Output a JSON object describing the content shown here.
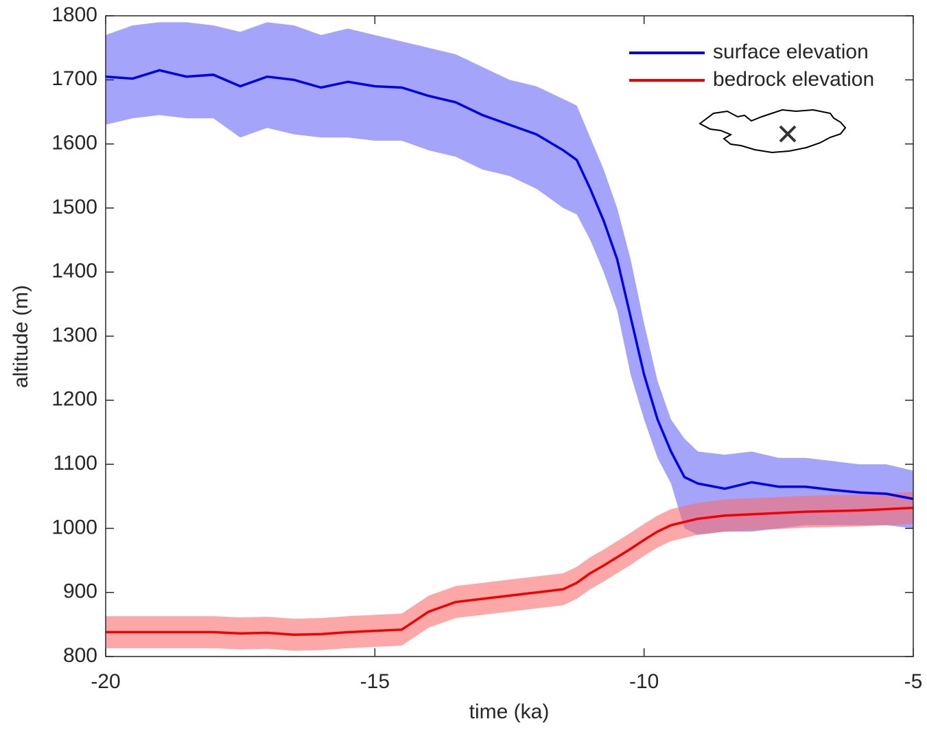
{
  "chart_data": {
    "type": "line",
    "xlabel": "time (ka)",
    "ylabel": "altitude (m)",
    "x": [
      -20,
      -19.5,
      -19,
      -18.5,
      -18,
      -17.5,
      -17,
      -16.5,
      -16,
      -15.5,
      -15,
      -14.5,
      -14,
      -13.5,
      -13,
      -12.5,
      -12,
      -11.5,
      -11.25,
      -11,
      -10.75,
      -10.5,
      -10.25,
      -10,
      -9.75,
      -9.5,
      -9.25,
      -9,
      -8.5,
      -8,
      -7.5,
      -7,
      -6.5,
      -6,
      -5.5,
      -5
    ],
    "series": [
      {
        "name": "surface elevation",
        "color": "#0000e6",
        "band_color": "#a4a4fb",
        "values": [
          1705,
          1702,
          1715,
          1705,
          1708,
          1690,
          1705,
          1700,
          1688,
          1697,
          1690,
          1688,
          1675,
          1665,
          1645,
          1630,
          1615,
          1590,
          1575,
          1530,
          1480,
          1420,
          1330,
          1240,
          1170,
          1120,
          1080,
          1070,
          1062,
          1072,
          1065,
          1065,
          1060,
          1056,
          1054,
          1046
        ],
        "upper": [
          1770,
          1785,
          1790,
          1790,
          1785,
          1775,
          1790,
          1785,
          1770,
          1780,
          1770,
          1760,
          1750,
          1740,
          1720,
          1700,
          1690,
          1670,
          1660,
          1610,
          1560,
          1500,
          1420,
          1320,
          1230,
          1170,
          1140,
          1120,
          1115,
          1120,
          1110,
          1110,
          1105,
          1100,
          1100,
          1090
        ],
        "lower": [
          1630,
          1640,
          1645,
          1640,
          1640,
          1610,
          1625,
          1615,
          1610,
          1610,
          1605,
          1605,
          1590,
          1580,
          1560,
          1550,
          1530,
          1500,
          1490,
          1450,
          1400,
          1340,
          1240,
          1170,
          1110,
          1070,
          1000,
          990,
          995,
          995,
          1000,
          1005,
          1005,
          1005,
          1005,
          1000
        ]
      },
      {
        "name": "bedrock elevation",
        "color": "#f00000",
        "band_color": "rgba(250,110,110,0.6)",
        "values": [
          838,
          838,
          838,
          838,
          838,
          836,
          837,
          834,
          835,
          838,
          840,
          842,
          870,
          885,
          890,
          895,
          900,
          905,
          915,
          930,
          942,
          955,
          968,
          982,
          995,
          1005,
          1010,
          1015,
          1020,
          1022,
          1024,
          1026,
          1027,
          1028,
          1030,
          1032
        ],
        "upper": [
          863,
          863,
          863,
          863,
          863,
          861,
          862,
          859,
          860,
          863,
          865,
          867,
          895,
          910,
          915,
          920,
          925,
          930,
          940,
          955,
          967,
          980,
          993,
          1007,
          1020,
          1030,
          1035,
          1040,
          1045,
          1047,
          1049,
          1051,
          1052,
          1053,
          1055,
          1057
        ],
        "lower": [
          813,
          813,
          813,
          813,
          813,
          811,
          812,
          809,
          810,
          813,
          815,
          817,
          845,
          860,
          865,
          870,
          875,
          880,
          890,
          905,
          917,
          930,
          943,
          957,
          970,
          980,
          985,
          990,
          995,
          997,
          999,
          1001,
          1002,
          1003,
          1005,
          1007
        ]
      }
    ],
    "xlim": [
      -20,
      -5
    ],
    "xticks": [
      -20,
      -15,
      -10,
      -5
    ],
    "ylim": [
      800,
      1800
    ],
    "yticks": [
      800,
      900,
      1000,
      1100,
      1200,
      1300,
      1400,
      1500,
      1600,
      1700,
      1800
    ],
    "legend": "upper-right"
  }
}
